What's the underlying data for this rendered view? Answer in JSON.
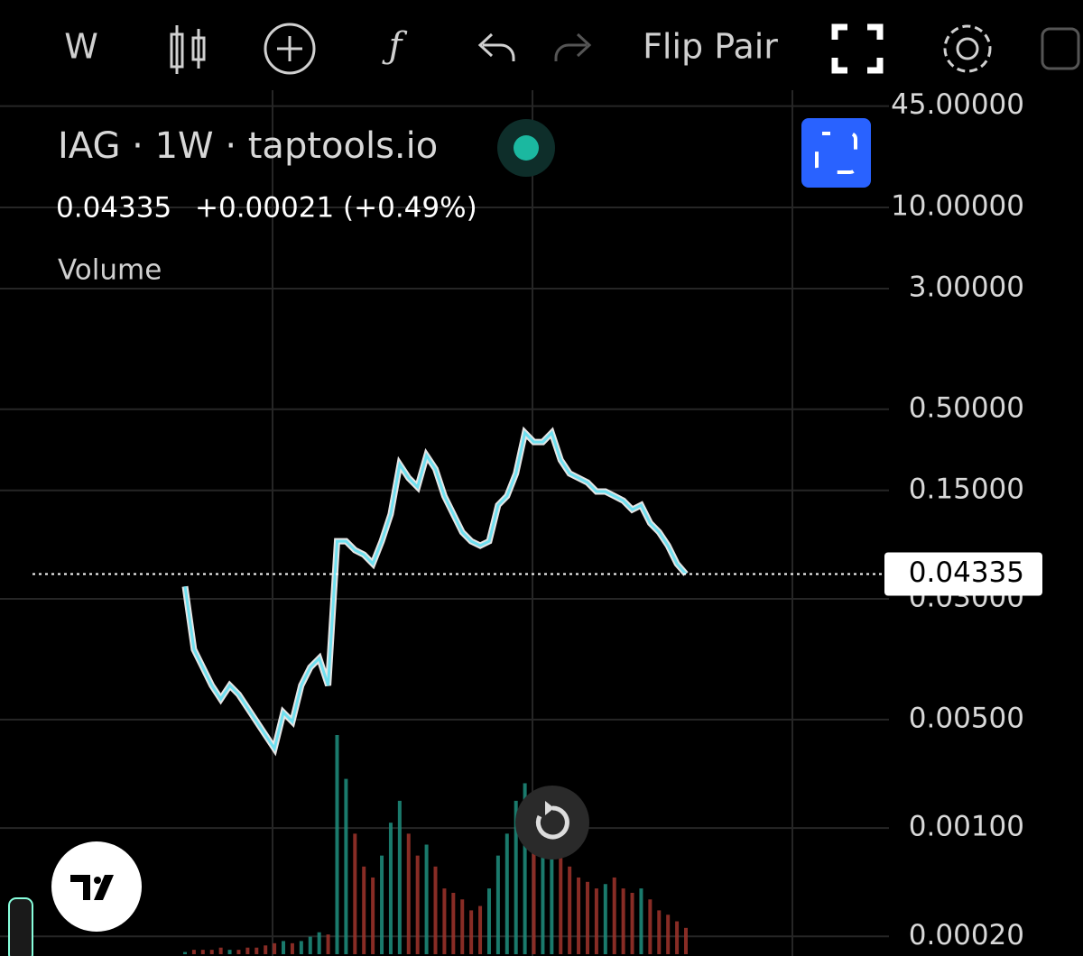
{
  "toolbar": {
    "interval": "W",
    "flip": "Flip Pair"
  },
  "legend": {
    "symbol": "IAG · 1W · taptools.io",
    "price": "0.04335",
    "change": "+0.00021 (+0.49%)",
    "study": "Volume"
  },
  "chart_data": {
    "type": "line",
    "log_scale": true,
    "grid": true,
    "color": "#6fe0f0",
    "values": [
      0.0361,
      0.01416,
      0.01084,
      0.0083,
      0.00678,
      0.0083,
      0.00725,
      0.00593,
      0.00485,
      0.00397,
      0.00325,
      0.00555,
      0.00485,
      0.0083,
      0.01084,
      0.01239,
      0.0083,
      0.0706,
      0.0706,
      0.0618,
      0.0578,
      0.0505,
      0.0706,
      0.1054,
      0.2203,
      0.1803,
      0.1578,
      0.2518,
      0.2061,
      0.138,
      0.1054,
      0.0807,
      0.0706,
      0.0661,
      0.0706,
      0.1206,
      0.138,
      0.1928,
      0.3524,
      0.3076,
      0.3076,
      0.3524,
      0.2355,
      0.1928,
      0.1803,
      0.1687,
      0.1476,
      0.1476,
      0.138,
      0.1288,
      0.1127,
      0.1206,
      0.0923,
      0.0807,
      0.0661,
      0.0505,
      0.04335
    ],
    "volume": [
      1,
      2,
      2,
      2,
      3,
      2,
      2,
      3,
      3,
      4,
      5,
      6,
      5,
      6,
      8,
      10,
      9,
      100,
      80,
      55,
      40,
      35,
      45,
      60,
      70,
      55,
      45,
      50,
      40,
      30,
      28,
      25,
      20,
      22,
      30,
      45,
      55,
      70,
      78,
      60,
      55,
      50,
      45,
      40,
      35,
      33,
      30,
      32,
      35,
      30,
      28,
      30,
      25,
      20,
      18,
      15,
      12
    ],
    "y2lim": [
      0,
      100
    ],
    "last_value": 0.04335,
    "ylim": [
      0.000171,
      57
    ],
    "yticks": [
      {
        "value": 45,
        "label": "45.00000"
      },
      {
        "value": 10,
        "label": "10.00000"
      },
      {
        "value": 3,
        "label": "3.00000"
      },
      {
        "value": 0.5,
        "label": "0.50000"
      },
      {
        "value": 0.15,
        "label": "0.15000"
      },
      {
        "value": 0.03,
        "label": "0.03000"
      },
      {
        "value": 0.005,
        "label": "0.00500"
      },
      {
        "value": 0.001,
        "label": "0.00100"
      },
      {
        "value": 0.0002,
        "label": "0.00020"
      }
    ]
  }
}
